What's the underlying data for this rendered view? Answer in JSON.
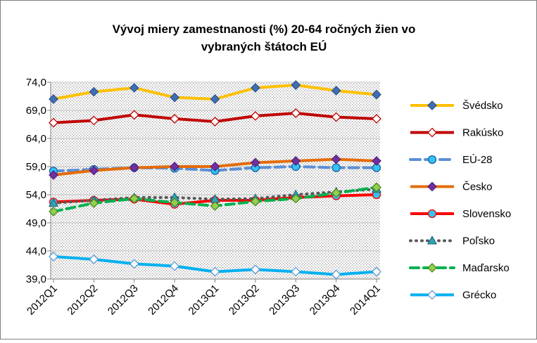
{
  "chart_data": {
    "type": "line",
    "title": [
      "Vývoj miery zamestnanosti  (%) 20-64  ročných žien vo",
      "vybraných štátoch  EÚ"
    ],
    "categories": [
      "2012Q1",
      "2012Q2",
      "2012Q3",
      "2012Q4",
      "2013Q1",
      "2013Q2",
      "2013Q3",
      "2013Q4",
      "2014Q1"
    ],
    "ylim": [
      39,
      74
    ],
    "yticks": [
      {
        "value": 39,
        "label": "39,0"
      },
      {
        "value": 44,
        "label": "44,0"
      },
      {
        "value": 49,
        "label": "49,0"
      },
      {
        "value": 54,
        "label": "54,0"
      },
      {
        "value": 59,
        "label": "59,0"
      },
      {
        "value": 64,
        "label": "64,0"
      },
      {
        "value": 69,
        "label": "69,0"
      },
      {
        "value": 74,
        "label": "74,0"
      }
    ],
    "grid": true,
    "legend": "right",
    "series": [
      {
        "name": "Švédsko",
        "color": "#ffc000",
        "marker": "diamond",
        "marker_fill": "#3f6fb0",
        "marker_stroke": "#2f5597",
        "dash": "none",
        "values": [
          71.0,
          72.3,
          73.0,
          71.3,
          71.0,
          73.0,
          73.5,
          72.5,
          71.8
        ]
      },
      {
        "name": "Rakúsko",
        "color": "#c00000",
        "marker": "diamond",
        "marker_fill": "#ffffff",
        "marker_stroke": "#c00000",
        "dash": "none",
        "values": [
          66.8,
          67.2,
          68.2,
          67.5,
          67.0,
          68.0,
          68.5,
          67.8,
          67.5
        ]
      },
      {
        "name": "EÚ-28",
        "color": "#5b8fd6",
        "marker": "circle",
        "marker_fill": "#33c3f0",
        "marker_stroke": "#1f5fa8",
        "dash": "14 7",
        "values": [
          58.2,
          58.5,
          58.8,
          58.7,
          58.3,
          58.8,
          59.0,
          58.8,
          58.8
        ]
      },
      {
        "name": "Česko",
        "color": "#e46c0a",
        "marker": "diamond",
        "marker_fill": "#7030a0",
        "marker_stroke": "#5a2080",
        "dash": "none",
        "values": [
          57.5,
          58.3,
          58.8,
          59.0,
          59.0,
          59.7,
          60.0,
          60.3,
          60.0
        ]
      },
      {
        "name": "Slovensko",
        "color": "#ff0000",
        "marker": "circle",
        "marker_fill": "#33c3f0",
        "marker_stroke": "#ff0000",
        "dash": "none",
        "values": [
          52.7,
          53.0,
          53.2,
          52.3,
          53.0,
          53.0,
          53.5,
          53.8,
          54.0
        ]
      },
      {
        "name": "Poľsko",
        "color": "#595959",
        "marker": "triangle",
        "marker_fill": "#31a4b8",
        "marker_stroke": "#1f6f80",
        "dash": "1 7",
        "values": [
          52.5,
          53.0,
          53.5,
          53.5,
          53.2,
          53.3,
          54.0,
          54.5,
          55.0
        ]
      },
      {
        "name": "Maďarsko",
        "color": "#00b050",
        "marker": "diamond",
        "marker_fill": "#92d050",
        "marker_stroke": "#4f8a1f",
        "dash": "12 7",
        "values": [
          51.0,
          52.5,
          53.3,
          52.6,
          52.0,
          52.8,
          53.3,
          54.3,
          55.3
        ]
      },
      {
        "name": "Grécko",
        "color": "#00b0f0",
        "marker": "diamond",
        "marker_fill": "#ffffff",
        "marker_stroke": "#5b9bd5",
        "dash": "none",
        "values": [
          43.0,
          42.5,
          41.7,
          41.3,
          40.3,
          40.7,
          40.3,
          39.8,
          40.3
        ]
      }
    ]
  }
}
